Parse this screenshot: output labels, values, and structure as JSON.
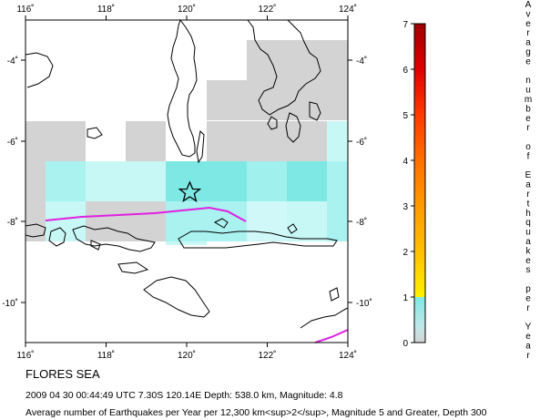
{
  "region_title": "FLORES SEA",
  "event_line": "2009 04 30 00:44:49 UTC 7.30S 120.14E Depth: 538.0 km, Magnitude: 4.8",
  "description_line": "Average number of Earthquakes per Year per 12,300 km<sup>2</sup>, Magnitude 5 and Greater, Depth 300",
  "map": {
    "lon_ticks": [
      "116˚",
      "118˚",
      "120˚",
      "122˚",
      "124˚"
    ],
    "lat_ticks_left": [
      "-4˚",
      "-6˚",
      "-8˚",
      "-10˚"
    ],
    "lat_ticks_right": [
      "-4˚",
      "-6˚",
      "-8˚",
      "-10˚"
    ],
    "epicenter_marker": "star-icon",
    "trench_line_color": "#e020e0",
    "land_outline_color": "#000000"
  },
  "legend": {
    "title_letters": [
      "A",
      "v",
      "e",
      "r",
      "a",
      "g",
      "e",
      "n",
      "u",
      "m",
      "b",
      "e",
      "r",
      "o",
      "f",
      "E",
      "a",
      "r",
      "t",
      "h",
      "q",
      "u",
      "a",
      "k",
      "e",
      "s",
      "p",
      "e",
      "r",
      "Y",
      "e",
      "a",
      "r"
    ],
    "tick_labels": [
      "0",
      "1",
      "2",
      "3",
      "4",
      "5",
      "6",
      "7"
    ],
    "colors": {
      "0-1": "#d6d6d6|#c0f6f4",
      "1-2": "#fff000",
      "3": "#ffb000",
      "4": "#ff8000",
      "5": "#ff4000",
      "6": "#e00000",
      "7": "#a00000"
    }
  }
}
